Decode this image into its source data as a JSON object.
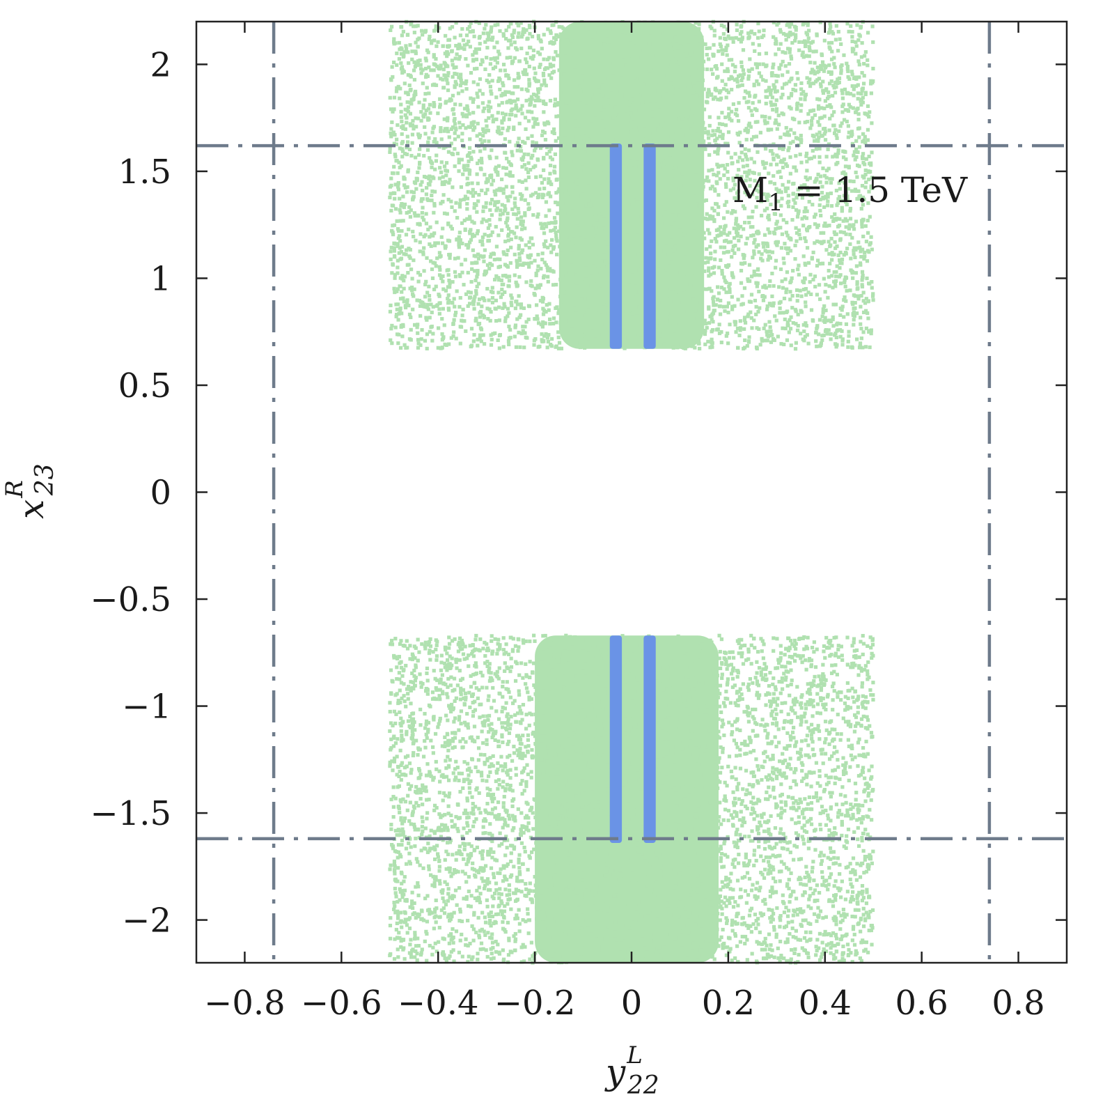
{
  "chart_data": {
    "type": "scatter",
    "title": "",
    "xlabel": {
      "base": "y",
      "sup": "L",
      "sub": "22"
    },
    "ylabel": {
      "base": "x",
      "sup": "R",
      "sub": "23"
    },
    "xlim": [
      -0.9,
      0.9
    ],
    "ylim": [
      -2.2,
      2.2
    ],
    "x_ticks": [
      -0.8,
      -0.6,
      -0.4,
      -0.2,
      0,
      0.2,
      0.4,
      0.6,
      0.8
    ],
    "x_tick_labels": [
      "−0.8",
      "−0.6",
      "−0.4",
      "−0.2",
      "0",
      "0.2",
      "0.4",
      "0.6",
      "0.8"
    ],
    "y_ticks": [
      -2,
      -1.5,
      -1,
      -0.5,
      0,
      0.5,
      1,
      1.5,
      2
    ],
    "y_tick_labels": [
      "−2",
      "−1.5",
      "−1",
      "−0.5",
      "0",
      "0.5",
      "1",
      "1.5",
      "2"
    ],
    "annotation": {
      "base": "M",
      "sub": "1",
      "rest": " = 1.5 TeV"
    },
    "colors": {
      "allowed_points": "#b0e1b0",
      "preferred_band": "#6a93e6",
      "bound_lines": "#6e7b8b",
      "frame": "#222222"
    },
    "series": [
      {
        "role": "allowed-region",
        "style": "scattered-points",
        "regions": [
          {
            "x_range": [
              -0.5,
              0.5
            ],
            "y_range": [
              0.67,
              2.2
            ],
            "dense_x_range": [
              -0.15,
              0.15
            ]
          },
          {
            "x_range": [
              -0.5,
              0.5
            ],
            "y_range": [
              -2.2,
              -0.67
            ],
            "dense_x_range": [
              -0.2,
              0.18
            ]
          }
        ]
      },
      {
        "role": "preferred-band",
        "style": "vertical-bands",
        "bands": [
          {
            "x_range": [
              -0.045,
              -0.02
            ],
            "y_range": [
              0.67,
              1.63
            ]
          },
          {
            "x_range": [
              0.025,
              0.05
            ],
            "y_range": [
              0.67,
              1.63
            ]
          },
          {
            "x_range": [
              -0.045,
              -0.02
            ],
            "y_range": [
              -1.64,
              -0.67
            ]
          },
          {
            "x_range": [
              0.025,
              0.05
            ],
            "y_range": [
              -1.64,
              -0.67
            ]
          }
        ]
      }
    ],
    "reference_lines": {
      "style": "dash-dot",
      "vertical_x": [
        -0.74,
        0.74
      ],
      "horizontal_y": [
        1.62,
        -1.62
      ]
    },
    "grid": false,
    "legend": "none"
  }
}
